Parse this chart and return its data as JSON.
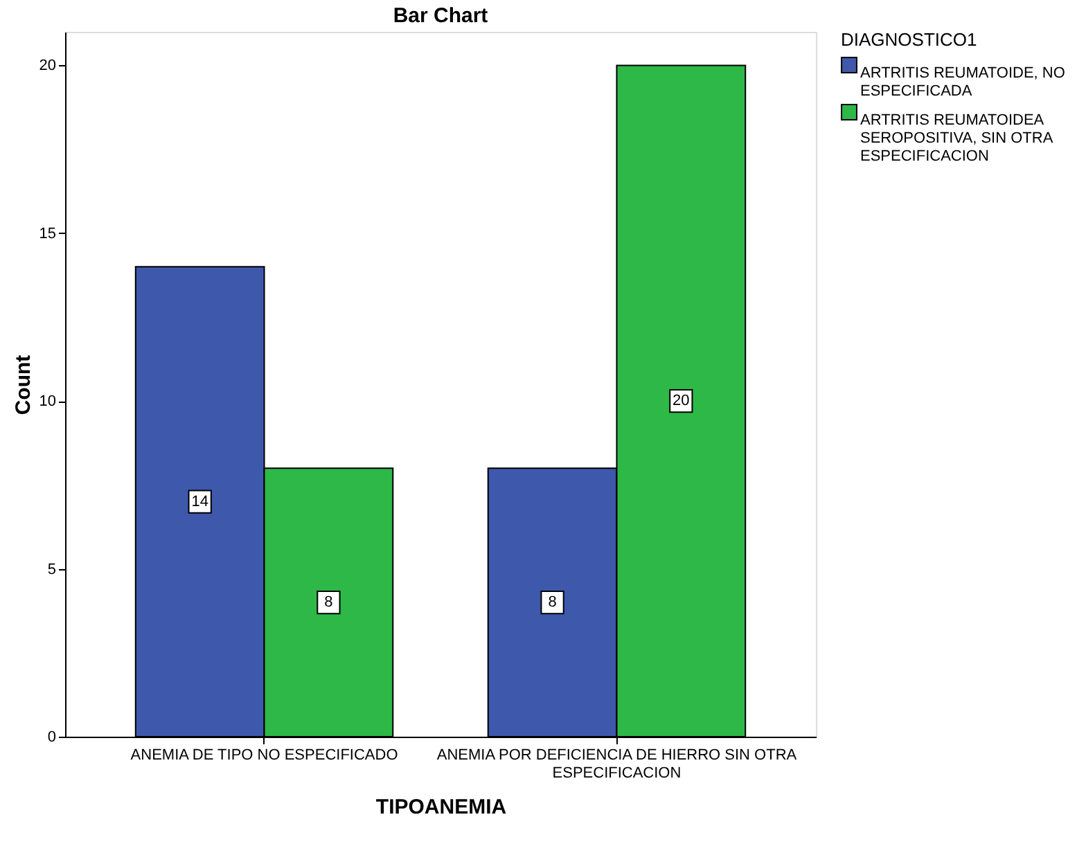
{
  "chart_data": {
    "type": "bar",
    "title": "Bar Chart",
    "xlabel": "TIPOANEMIA",
    "ylabel": "Count",
    "legend_title": "DIAGNOSTICO1",
    "categories": [
      "ANEMIA DE TIPO NO ESPECIFICADO",
      "ANEMIA POR DEFICIENCIA DE HIERRO SIN OTRA ESPECIFICACION"
    ],
    "series": [
      {
        "name": "ARTRITIS REUMATOIDE, NO ESPECIFICADA",
        "color": "#3e58ac",
        "values": [
          14,
          8
        ]
      },
      {
        "name": "ARTRITIS REUMATOIDEA SEROPOSITIVA, SIN OTRA ESPECIFICACION",
        "color": "#2eb848",
        "values": [
          8,
          20
        ]
      }
    ],
    "ylim": [
      0,
      21
    ],
    "yticks": [
      0,
      5,
      10,
      15,
      20
    ],
    "grid": false,
    "legend": "top right",
    "data_labels": true
  }
}
